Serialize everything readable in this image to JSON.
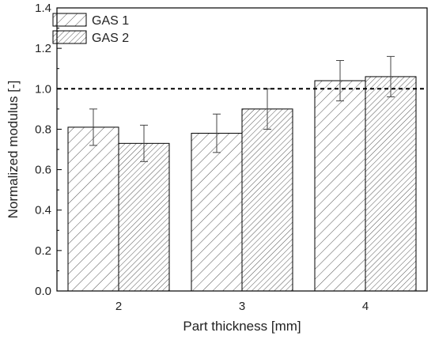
{
  "chart_data": {
    "type": "bar",
    "categories": [
      "2",
      "3",
      "4"
    ],
    "series": [
      {
        "name": "GAS 1",
        "values": [
          0.81,
          0.78,
          1.04
        ],
        "errors": [
          0.09,
          0.095,
          0.1
        ],
        "hatch": "forward"
      },
      {
        "name": "GAS 2",
        "values": [
          0.73,
          0.9,
          1.06
        ],
        "errors": [
          0.09,
          0.1,
          0.1
        ],
        "hatch": "forward-dense"
      }
    ],
    "xlabel": "Part thickness [mm]",
    "ylabel": "Normalized modulus [-]",
    "ylim": [
      0.0,
      1.4
    ],
    "yticks": [
      "0.0",
      "0.2",
      "0.4",
      "0.6",
      "0.8",
      "1.0",
      "1.2",
      "1.4"
    ],
    "reference_line": {
      "value": 1.0,
      "style": "dashed"
    },
    "legend": "top-left",
    "grid": false
  }
}
